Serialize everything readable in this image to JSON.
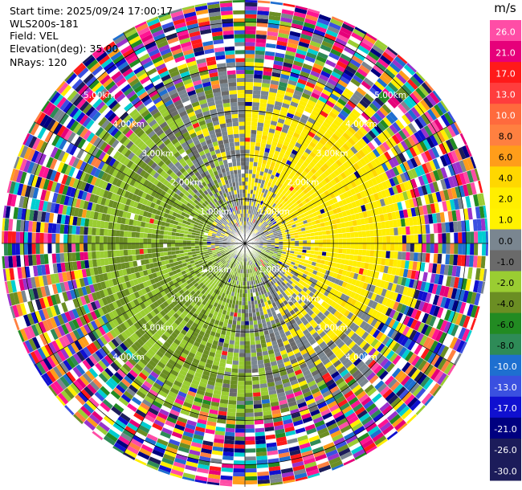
{
  "header": {
    "start_time": "Start time: 2025/09/24 17:00:17",
    "instrument": "WLS200s-181",
    "field": "Field: VEL",
    "elevation": "Elevation(deg): 35.00",
    "nrays": "NRays: 120"
  },
  "colorbar": {
    "unit": "m/s",
    "bands": [
      {
        "label": "26.0",
        "color": "#ff4da6"
      },
      {
        "label": "21.0",
        "color": "#e6007a"
      },
      {
        "label": "17.0",
        "color": "#ff1a1a"
      },
      {
        "label": "13.0",
        "color": "#ff3d3d"
      },
      {
        "label": "10.0",
        "color": "#ff6a3d"
      },
      {
        "label": "8.0",
        "color": "#ff8040"
      },
      {
        "label": "6.0",
        "color": "#ff9d1a"
      },
      {
        "label": "4.0",
        "color": "#ffd700"
      },
      {
        "label": "2.0",
        "color": "#ffee00"
      },
      {
        "label": "1.0",
        "color": "#fff200"
      },
      {
        "label": "0.0",
        "color": "#7a8690"
      },
      {
        "label": "-1.0",
        "color": "#6a6a6a"
      },
      {
        "label": "-2.0",
        "color": "#9acd32"
      },
      {
        "label": "-4.0",
        "color": "#6b8e23"
      },
      {
        "label": "-6.0",
        "color": "#228b22"
      },
      {
        "label": "-8.0",
        "color": "#2e8b57"
      },
      {
        "label": "-10.0",
        "color": "#1e6fd0"
      },
      {
        "label": "-13.0",
        "color": "#3a50e0"
      },
      {
        "label": "-17.0",
        "color": "#1010d0"
      },
      {
        "label": "-21.0",
        "color": "#000080"
      },
      {
        "label": "-26.0",
        "color": "#1c1c5a"
      },
      {
        "label": "-30.0",
        "color": "#1c1c5a"
      }
    ]
  },
  "chart_data": {
    "type": "heatmap",
    "field": "VEL",
    "nrays": 120,
    "elevation_deg": 35.0,
    "ring_labels_km": [
      "1.00km",
      "2.00km",
      "3.00km",
      "4.00km",
      "5.00km"
    ],
    "range_max_km": 5.5
  }
}
